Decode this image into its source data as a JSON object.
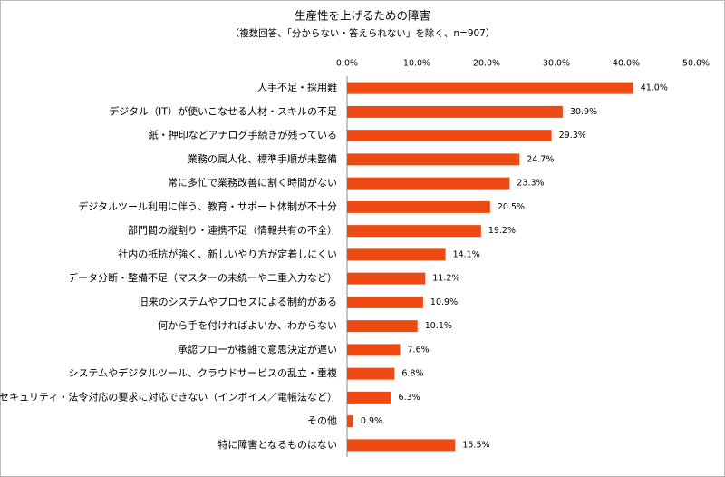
{
  "chart_data": {
    "type": "hbar",
    "title": "生産性を上げるための障害",
    "subtitle": "（複数回答、「分からない・答えられない」を除く、n=907）",
    "categories": [
      "人手不足・採用難",
      "デジタル（IT）が使いこなせる人材・スキルの不足",
      "紙・押印などアナログ手続きが残っている",
      "業務の属人化、標準手順が未整備",
      "常に多忙で業務改善に割く時間がない",
      "デジタルツール利用に伴う、教育・サポート体制が不十分",
      "部門間の縦割り・連携不足（情報共有の不全）",
      "社内の抵抗が強く、新しいやり方が定着しにくい",
      "データ分断・整備不足（マスターの未統一や二重入力など）",
      "旧来のシステムやプロセスによる制約がある",
      "何から手を付ければよいか、わからない",
      "承認フローが複雑で意思決定が遅い",
      "システムやデジタルツール、クラウドサービスの乱立・重複",
      "セキュリティ・法令対応の要求に対応できない（インボイス／電帳法など）",
      "その他",
      "特に障害となるものはない"
    ],
    "values": [
      41.0,
      30.9,
      29.3,
      24.7,
      23.3,
      20.5,
      19.2,
      14.1,
      11.2,
      10.9,
      10.1,
      7.6,
      6.8,
      6.3,
      0.9,
      15.5
    ],
    "value_labels": [
      "41.0%",
      "30.9%",
      "29.3%",
      "24.7%",
      "23.3%",
      "20.5%",
      "19.2%",
      "14.1%",
      "11.2%",
      "10.9%",
      "10.1%",
      "7.6%",
      "6.8%",
      "6.3%",
      "0.9%",
      "15.5%"
    ],
    "color": "#ee4b14",
    "xlim": [
      0,
      50
    ],
    "xticks": [
      {
        "value": 0,
        "label": "0.0%"
      },
      {
        "value": 10,
        "label": "10.0%"
      },
      {
        "value": 20,
        "label": "20.0%"
      },
      {
        "value": 30,
        "label": "30.0%"
      },
      {
        "value": 40,
        "label": "40.0%"
      },
      {
        "value": 50,
        "label": "50.0%"
      }
    ],
    "grid": false
  }
}
